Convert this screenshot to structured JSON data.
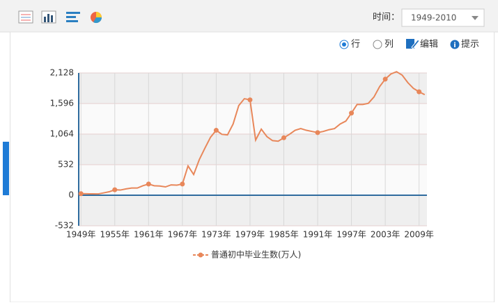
{
  "toolbar": {
    "time_label": "时间：",
    "time_range": "1949-2010",
    "row": "行",
    "column": "列",
    "edit": "编辑",
    "hint": "提示"
  },
  "chart_data": {
    "type": "line",
    "x": [
      1949,
      1950,
      1951,
      1952,
      1953,
      1954,
      1955,
      1956,
      1957,
      1958,
      1959,
      1960,
      1961,
      1962,
      1963,
      1964,
      1965,
      1966,
      1967,
      1968,
      1969,
      1970,
      1971,
      1972,
      1973,
      1974,
      1975,
      1976,
      1977,
      1978,
      1979,
      1980,
      1981,
      1982,
      1983,
      1984,
      1985,
      1986,
      1987,
      1988,
      1989,
      1990,
      1991,
      1992,
      1993,
      1994,
      1995,
      1996,
      1997,
      1998,
      1999,
      2000,
      2001,
      2002,
      2003,
      2004,
      2005,
      2006,
      2007,
      2008,
      2009,
      2010
    ],
    "series": [
      {
        "name": "普通初中毕业生数(万人)",
        "color": "#e8875a",
        "values": [
          27,
          25,
          24,
          22,
          40,
          60,
          95,
          90,
          110,
          125,
          125,
          165,
          195,
          165,
          160,
          145,
          180,
          175,
          195,
          510,
          360,
          620,
          820,
          1010,
          1130,
          1060,
          1050,
          1240,
          1560,
          1680,
          1660,
          960,
          1150,
          1020,
          950,
          940,
          1000,
          1060,
          1130,
          1160,
          1130,
          1110,
          1090,
          1110,
          1140,
          1160,
          1240,
          1290,
          1430,
          1580,
          1580,
          1600,
          1710,
          1890,
          2020,
          2110,
          2150,
          2090,
          1960,
          1860,
          1800,
          1750
        ]
      }
    ],
    "xlim": [
      1948.6,
      2010.4
    ],
    "xticks": [
      {
        "value": 1949,
        "label": "1949年"
      },
      {
        "value": 1955,
        "label": "1955年"
      },
      {
        "value": 1961,
        "label": "1961年"
      },
      {
        "value": 1967,
        "label": "1967年"
      },
      {
        "value": 1973,
        "label": "1973年"
      },
      {
        "value": 1979,
        "label": "1979年"
      },
      {
        "value": 1985,
        "label": "1985年"
      },
      {
        "value": 1991,
        "label": "1991年"
      },
      {
        "value": 1997,
        "label": "1997年"
      },
      {
        "value": 2003,
        "label": "2003年"
      },
      {
        "value": 2009,
        "label": "2009年"
      }
    ],
    "ylim": [
      -532,
      2128
    ],
    "yticks": [
      -532,
      0,
      532,
      {
        "value": 1064,
        "label": "1,064"
      },
      {
        "value": 1596,
        "label": "1,596"
      },
      {
        "value": 2128,
        "label": "2,128"
      }
    ],
    "grid": true
  }
}
